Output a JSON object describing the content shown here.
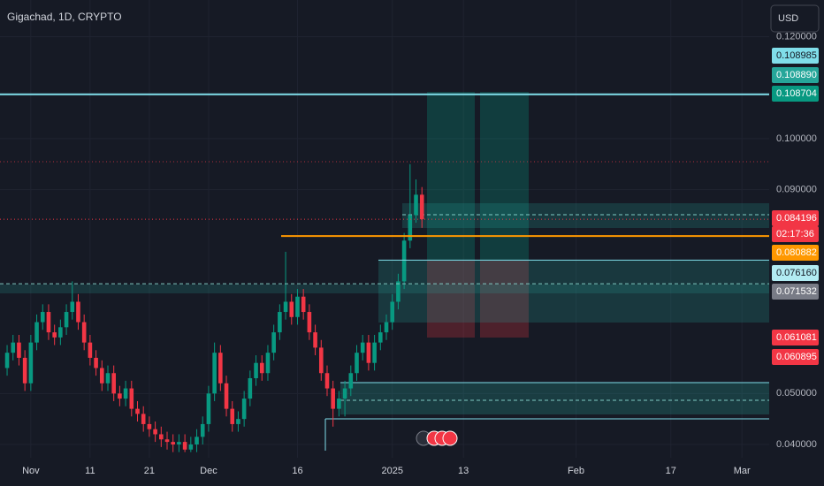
{
  "chart_data": {
    "type": "candlestick",
    "title": "Gigachad, 1D, CRYPTO",
    "currency": "USD",
    "x": [
      -4,
      -3,
      -2,
      -1,
      0,
      1,
      2,
      3,
      4,
      5,
      6,
      7,
      8,
      9,
      10,
      11,
      12,
      13,
      14,
      15,
      16,
      17,
      18,
      19,
      20,
      21,
      22,
      23,
      24,
      25,
      26,
      27,
      28,
      29,
      30,
      31,
      32,
      33,
      34,
      35,
      36,
      37,
      38,
      39,
      40,
      41,
      42,
      43,
      44,
      45,
      46,
      47,
      48,
      49,
      50,
      51,
      52,
      53,
      54,
      55,
      56,
      57,
      58,
      59,
      60,
      61,
      62,
      63,
      64,
      65,
      66
    ],
    "open": [
      0.055,
      0.058,
      0.06,
      0.057,
      0.052,
      0.06,
      0.064,
      0.066,
      0.062,
      0.061,
      0.063,
      0.066,
      0.068,
      0.064,
      0.06,
      0.057,
      0.055,
      0.052,
      0.054,
      0.05,
      0.049,
      0.051,
      0.047,
      0.046,
      0.044,
      0.043,
      0.042,
      0.041,
      0.0405,
      0.04,
      0.0405,
      0.039,
      0.04,
      0.0415,
      0.044,
      0.05,
      0.058,
      0.052,
      0.047,
      0.044,
      0.045,
      0.049,
      0.053,
      0.056,
      0.054,
      0.058,
      0.062,
      0.066,
      0.068,
      0.065,
      0.069,
      0.066,
      0.062,
      0.059,
      0.054,
      0.051,
      0.047,
      0.049,
      0.051,
      0.054,
      0.058,
      0.06,
      0.056,
      0.06,
      0.062,
      0.064,
      0.068,
      0.072,
      0.08,
      0.085,
      0.089
    ],
    "high": [
      0.0595,
      0.0615,
      0.0615,
      0.0585,
      0.0615,
      0.0655,
      0.0675,
      0.0675,
      0.0635,
      0.0645,
      0.0675,
      0.072,
      0.0695,
      0.0655,
      0.0615,
      0.0585,
      0.0565,
      0.0555,
      0.0555,
      0.0515,
      0.0525,
      0.0525,
      0.0485,
      0.0475,
      0.0455,
      0.0445,
      0.0435,
      0.0425,
      0.042,
      0.042,
      0.042,
      0.0415,
      0.043,
      0.0455,
      0.0515,
      0.06,
      0.0595,
      0.0535,
      0.0485,
      0.0465,
      0.0505,
      0.0545,
      0.0575,
      0.0575,
      0.0595,
      0.0635,
      0.0675,
      0.0778,
      0.0695,
      0.0705,
      0.0705,
      0.0675,
      0.0635,
      0.0605,
      0.0555,
      0.0525,
      0.0505,
      0.0525,
      0.0555,
      0.0595,
      0.0615,
      0.0615,
      0.0615,
      0.0635,
      0.0655,
      0.0695,
      0.0735,
      0.0815,
      0.095,
      0.092,
      0.0905
    ],
    "low": [
      0.0535,
      0.0565,
      0.0555,
      0.0505,
      0.0505,
      0.0585,
      0.0625,
      0.0605,
      0.0595,
      0.0595,
      0.0615,
      0.0645,
      0.0625,
      0.0585,
      0.0555,
      0.0535,
      0.0505,
      0.0505,
      0.0485,
      0.0475,
      0.0475,
      0.0455,
      0.0445,
      0.0425,
      0.0415,
      0.0405,
      0.0395,
      0.039,
      0.0385,
      0.0385,
      0.0385,
      0.0385,
      0.0385,
      0.04,
      0.0425,
      0.0485,
      0.0505,
      0.0455,
      0.0425,
      0.0425,
      0.0435,
      0.0475,
      0.0515,
      0.0525,
      0.0525,
      0.0565,
      0.0605,
      0.0645,
      0.0635,
      0.0635,
      0.0645,
      0.0605,
      0.0575,
      0.0525,
      0.0495,
      0.0435,
      0.0455,
      0.0455,
      0.0495,
      0.0525,
      0.0565,
      0.0545,
      0.0545,
      0.0585,
      0.0605,
      0.0625,
      0.0665,
      0.0705,
      0.0785,
      0.0835,
      0.0825
    ],
    "close": [
      0.058,
      0.06,
      0.057,
      0.052,
      0.06,
      0.064,
      0.066,
      0.062,
      0.061,
      0.063,
      0.066,
      0.068,
      0.064,
      0.06,
      0.057,
      0.055,
      0.052,
      0.054,
      0.05,
      0.049,
      0.051,
      0.047,
      0.046,
      0.044,
      0.043,
      0.042,
      0.041,
      0.0405,
      0.04,
      0.0405,
      0.039,
      0.04,
      0.0415,
      0.044,
      0.05,
      0.058,
      0.052,
      0.047,
      0.044,
      0.045,
      0.049,
      0.053,
      0.056,
      0.054,
      0.058,
      0.062,
      0.066,
      0.068,
      0.065,
      0.069,
      0.066,
      0.062,
      0.059,
      0.054,
      0.051,
      0.047,
      0.049,
      0.051,
      0.054,
      0.058,
      0.06,
      0.056,
      0.06,
      0.062,
      0.064,
      0.068,
      0.072,
      0.08,
      0.085,
      0.089,
      0.084196
    ],
    "up_color": "#089981",
    "down_color": "#f23645",
    "xlim": [
      -5.2,
      124.6
    ],
    "xticks": [
      {
        "value": 0,
        "label": "Nov"
      },
      {
        "value": 10,
        "label": "11"
      },
      {
        "value": 20,
        "label": "21"
      },
      {
        "value": 30,
        "label": "Dec"
      },
      {
        "value": 45,
        "label": "16"
      },
      {
        "value": 61,
        "label": "2025"
      },
      {
        "value": 73,
        "label": "13"
      },
      {
        "value": 92,
        "label": "Feb"
      },
      {
        "value": 108,
        "label": "17"
      },
      {
        "value": 120,
        "label": "Mar"
      }
    ],
    "ylim": [
      0.0374,
      0.1272
    ],
    "yticks": [
      {
        "value": 0.04,
        "label": "0.040000"
      },
      {
        "value": 0.05,
        "label": "0.050000"
      },
      {
        "value": 0.09,
        "label": "0.090000"
      },
      {
        "value": 0.1,
        "label": "0.100000"
      },
      {
        "value": 0.12,
        "label": "0.120000"
      }
    ],
    "grid": true,
    "price_tags": [
      {
        "value": 0.108985,
        "label": "0.108985",
        "color": "#80deea"
      },
      {
        "value": 0.10889,
        "label": "0.108890",
        "color": "#26a69a"
      },
      {
        "value": 0.108704,
        "label": "0.108704",
        "color": "#089981"
      },
      {
        "value": 0.084196,
        "label": "0.084196",
        "color": "#f23645"
      },
      {
        "label": "02:17:36",
        "color": "#f23645"
      },
      {
        "value": 0.080882,
        "label": "0.080882",
        "color": "#ff9800"
      },
      {
        "value": 0.07616,
        "label": "0.076160",
        "color": "#b2ebf2"
      },
      {
        "value": 0.071532,
        "label": "0.071532",
        "color": "#787b86"
      },
      {
        "value": 0.061081,
        "label": "0.061081",
        "color": "#f23645"
      },
      {
        "value": 0.060895,
        "label": "0.060895",
        "color": "#f23645"
      }
    ]
  }
}
